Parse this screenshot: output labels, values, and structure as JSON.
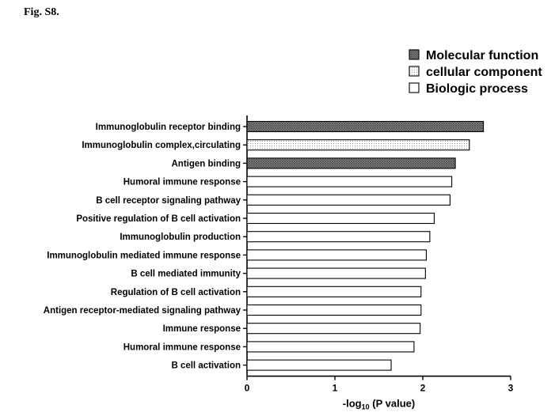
{
  "figure_label": "Fig. S8.",
  "colors": {
    "molecular_function": "#8a8a8a",
    "cellular_component": "#f2f2f2",
    "biologic_process": "#ffffff"
  },
  "chart_data": {
    "type": "bar",
    "orientation": "horizontal",
    "title": "",
    "xlabel_prefix": "-log",
    "xlabel_sub": "10",
    "xlabel_suffix": " (P value)",
    "xlim": [
      0,
      3
    ],
    "xticks": [
      0,
      1,
      2,
      3
    ],
    "grid": false,
    "legend_position": "top-right",
    "legend": [
      {
        "key": "molecular_function",
        "label": "Molecular function",
        "pattern": "crosshatch-dark"
      },
      {
        "key": "cellular_component",
        "label": "cellular component",
        "pattern": "dots-light"
      },
      {
        "key": "biologic_process",
        "label": "Biologic process",
        "pattern": "none"
      }
    ],
    "bars": [
      {
        "label": "Immunoglobulin receptor binding",
        "value": 2.69,
        "category": "molecular_function"
      },
      {
        "label": "Immunoglobulin complex,circulating",
        "value": 2.53,
        "category": "cellular_component"
      },
      {
        "label": "Antigen binding",
        "value": 2.37,
        "category": "molecular_function"
      },
      {
        "label": "Humoral immune response",
        "value": 2.33,
        "category": "biologic_process"
      },
      {
        "label": "B cell receptor signaling pathway",
        "value": 2.31,
        "category": "biologic_process"
      },
      {
        "label": "Positive regulation of B cell activation",
        "value": 2.13,
        "category": "biologic_process"
      },
      {
        "label": "Immunoglobulin production",
        "value": 2.08,
        "category": "biologic_process"
      },
      {
        "label": "Immunoglobulin mediated immune response",
        "value": 2.04,
        "category": "biologic_process"
      },
      {
        "label": "B cell mediated immunity",
        "value": 2.03,
        "category": "biologic_process"
      },
      {
        "label": "Regulation of B cell activation",
        "value": 1.98,
        "category": "biologic_process"
      },
      {
        "label": "Antigen receptor-mediated signaling pathway",
        "value": 1.98,
        "category": "biologic_process"
      },
      {
        "label": "Immune response",
        "value": 1.97,
        "category": "biologic_process"
      },
      {
        "label": "Humoral immune response",
        "value": 1.9,
        "category": "biologic_process"
      },
      {
        "label": "B cell activation",
        "value": 1.64,
        "category": "biologic_process"
      }
    ]
  }
}
